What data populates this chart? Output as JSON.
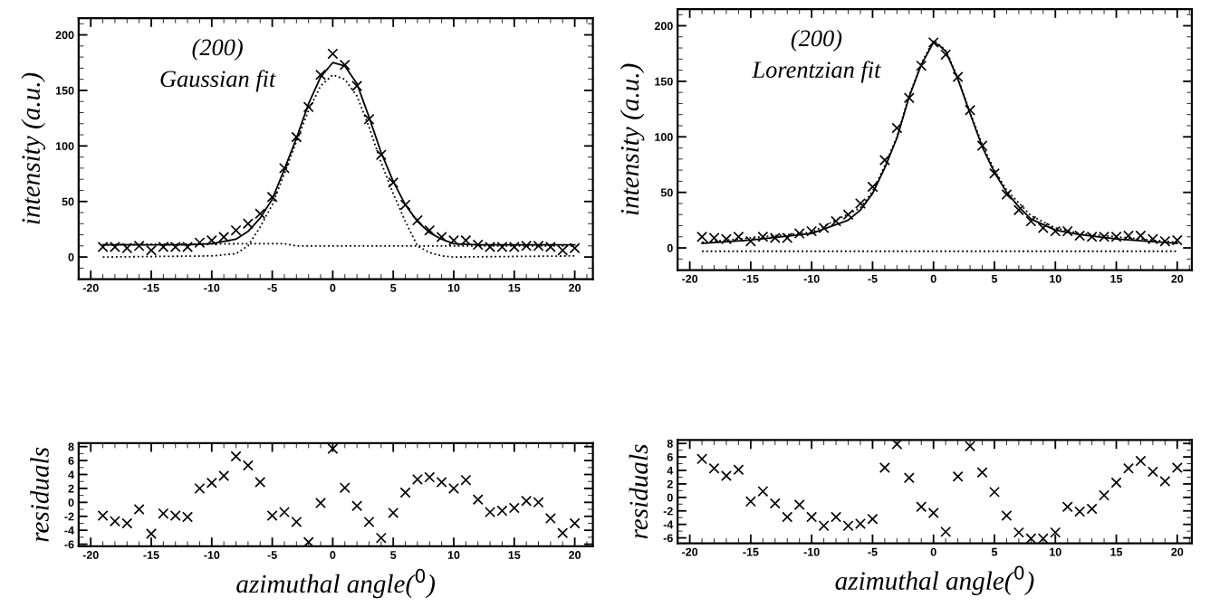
{
  "chart_data": [
    {
      "type": "scatter",
      "ylabel": "intensity (a.u.)",
      "annotations": [
        "(200)",
        "Gaussian fit"
      ],
      "grid": false,
      "x": [
        -19,
        -18,
        -17,
        -16,
        -15,
        -14,
        -13,
        -12,
        -11,
        -10,
        -9,
        -8,
        -7,
        -6,
        -5,
        -4,
        -3,
        -2,
        -1,
        0,
        1,
        2,
        3,
        4,
        5,
        6,
        7,
        8,
        9,
        10,
        11,
        12,
        13,
        14,
        15,
        16,
        17,
        18,
        19,
        20
      ],
      "xlim": [
        -21,
        21.5
      ],
      "ylim": [
        -20,
        215
      ],
      "xticks": [
        -20,
        -15,
        -10,
        -5,
        0,
        5,
        10,
        15,
        20
      ],
      "yticks": [
        0,
        50,
        100,
        150,
        200
      ],
      "series": [
        {
          "marker": "cross",
          "color": "#000000",
          "values": [
            9,
            9,
            8,
            10,
            6,
            9,
            9,
            9,
            13,
            15,
            18,
            24,
            30,
            39,
            54,
            80,
            108,
            135,
            164,
            183,
            173,
            154,
            124,
            92,
            67,
            47,
            33,
            24,
            18,
            15,
            15,
            11,
            9,
            9,
            9,
            10,
            10,
            9,
            6,
            8
          ]
        },
        {
          "type": "line",
          "line_style": "solid",
          "color": "#000000",
          "x": [
            -19,
            -12,
            -10,
            -8,
            -7,
            -6,
            -5,
            -4,
            -3,
            -2,
            -1,
            0,
            1,
            2,
            3,
            4,
            5,
            6,
            7,
            8,
            9,
            10,
            12,
            20
          ],
          "values": [
            11,
            11,
            12,
            16,
            23,
            35,
            52,
            79,
            107,
            138,
            162,
            175,
            172,
            156,
            126,
            94,
            68,
            47,
            32,
            22,
            16,
            12,
            11,
            11
          ]
        },
        {
          "type": "line",
          "line_style": "dotted",
          "color": "#000000",
          "x": [
            -19,
            -10,
            -8,
            -7,
            -6,
            -5,
            -4,
            -3,
            -2,
            -1,
            0,
            1,
            2,
            3,
            4,
            5,
            6,
            7,
            8,
            9,
            10,
            20
          ],
          "values": [
            0,
            1,
            3,
            10,
            27,
            47,
            75,
            104,
            132,
            154,
            164,
            160,
            145,
            117,
            85,
            57,
            32,
            10,
            4,
            1,
            0,
            1
          ]
        },
        {
          "type": "line",
          "line_style": "dotted",
          "color": "#000000",
          "x": [
            -19,
            -7,
            -4,
            -3,
            20
          ],
          "values": [
            11,
            12,
            12,
            10,
            10
          ]
        }
      ]
    },
    {
      "type": "scatter",
      "ylabel": "intensity (a.u.)",
      "annotations": [
        "(200)",
        "Lorentzian fit"
      ],
      "grid": false,
      "x": [
        -19,
        -18,
        -17,
        -16,
        -15,
        -14,
        -13,
        -12,
        -11,
        -10,
        -9,
        -8,
        -7,
        -6,
        -5,
        -4,
        -3,
        -2,
        -1,
        0,
        1,
        2,
        3,
        4,
        5,
        6,
        7,
        8,
        9,
        10,
        11,
        12,
        13,
        14,
        15,
        16,
        17,
        18,
        19,
        20
      ],
      "xlim": [
        -21,
        21.2
      ],
      "ylim": [
        -20,
        215
      ],
      "xticks": [
        -20,
        -15,
        -10,
        -5,
        0,
        5,
        10,
        15,
        20
      ],
      "yticks": [
        0,
        50,
        100,
        150,
        200
      ],
      "series": [
        {
          "marker": "cross",
          "color": "#000000",
          "values": [
            10,
            9,
            8,
            10,
            6,
            10,
            9,
            9,
            13,
            15,
            18,
            24,
            30,
            40,
            55,
            79,
            108,
            135,
            164,
            185,
            174,
            154,
            124,
            92,
            67,
            48,
            34,
            24,
            18,
            15,
            15,
            11,
            10,
            10,
            10,
            11,
            11,
            8,
            6,
            7
          ]
        },
        {
          "type": "line",
          "line_style": "solid",
          "color": "#000000",
          "x": [
            -19,
            -15,
            -10,
            -7,
            -6,
            -5,
            -4,
            -3,
            -2,
            -1,
            0,
            0.5,
            1,
            2,
            3,
            4,
            5,
            6,
            7,
            8,
            10,
            12,
            15,
            20
          ],
          "values": [
            4,
            7,
            13,
            25,
            34,
            49,
            72,
            99,
            136,
            165,
            185,
            182,
            177,
            152,
            121,
            91,
            68,
            50,
            37,
            26,
            16,
            12,
            8,
            4
          ]
        },
        {
          "type": "line",
          "line_style": "dotted",
          "color": "#000000",
          "x": [
            -19,
            -10,
            -6,
            -5,
            -4,
            -3,
            -2,
            -1,
            0,
            1,
            2,
            3,
            4,
            5,
            6,
            8,
            10,
            12,
            15,
            20
          ],
          "values": [
            5,
            14,
            36,
            51,
            74,
            100,
            137,
            166,
            187,
            178,
            153,
            122,
            93,
            70,
            52,
            29,
            18,
            13,
            10,
            5
          ]
        },
        {
          "type": "line",
          "line_style": "dotted",
          "color": "#000000",
          "x": [
            -19,
            20
          ],
          "values": [
            -3,
            -3
          ]
        }
      ]
    },
    {
      "type": "scatter",
      "ylabel": "residuals",
      "xlabel": "azimuthal angle($^{0}$)",
      "grid": false,
      "x": [
        -19,
        -18,
        -17,
        -16,
        -15,
        -14,
        -13,
        -12,
        -11,
        -10,
        -9,
        -8,
        -7,
        -6,
        -5,
        -4,
        -3,
        -2,
        -1,
        0,
        1,
        2,
        3,
        4,
        5,
        6,
        7,
        8,
        9,
        10,
        11,
        12,
        13,
        14,
        15,
        16,
        17,
        18,
        19,
        20
      ],
      "xlim": [
        -21,
        21.5
      ],
      "ylim": [
        -6.3,
        8.5
      ],
      "xticks": [
        -20,
        -15,
        -10,
        -5,
        0,
        5,
        10,
        15,
        20
      ],
      "yticks": [
        -6,
        -4,
        -2,
        0,
        2,
        4,
        6,
        8
      ],
      "series": [
        {
          "marker": "cross",
          "color": "#000000",
          "values": [
            -1.9,
            -2.7,
            -3,
            -1,
            -4.5,
            -1.6,
            -1.9,
            -2.1,
            2,
            2.8,
            3.8,
            6.6,
            5.3,
            2.9,
            -1.9,
            -1.4,
            -2.8,
            -5.7,
            -0.1,
            7.7,
            2.1,
            -0.5,
            -2.8,
            -5.1,
            -1.5,
            1.4,
            3.3,
            3.6,
            2.9,
            2,
            3.2,
            0.4,
            -1.4,
            -1.2,
            -0.8,
            0.2,
            0,
            -2.3,
            -4.4,
            -3
          ]
        }
      ]
    },
    {
      "type": "scatter",
      "ylabel": "residuals",
      "xlabel": "azimuthal angle($^{0}$)",
      "grid": false,
      "x": [
        -19,
        -18,
        -17,
        -16,
        -15,
        -14,
        -13,
        -12,
        -11,
        -10,
        -9,
        -8,
        -7,
        -6,
        -5,
        -4,
        -3,
        -2,
        -1,
        0,
        1,
        2,
        3,
        4,
        5,
        6,
        7,
        8,
        9,
        10,
        11,
        12,
        13,
        14,
        15,
        16,
        17,
        18,
        19,
        20
      ],
      "xlim": [
        -21,
        21.2
      ],
      "ylim": [
        -6.8,
        8.5
      ],
      "xticks": [
        -20,
        -15,
        -10,
        -5,
        0,
        5,
        10,
        15,
        20
      ],
      "yticks": [
        -6,
        -4,
        -2,
        0,
        2,
        4,
        6,
        8
      ],
      "series": [
        {
          "marker": "cross",
          "color": "#000000",
          "values": [
            5.7,
            4.3,
            3.2,
            4.1,
            -0.6,
            0.9,
            -0.9,
            -2.9,
            -1.1,
            -2.9,
            -4.2,
            -2.9,
            -4.2,
            -3.9,
            -3.2,
            4.4,
            7.9,
            2.9,
            -1.4,
            -2.3,
            -5.1,
            3.1,
            7.6,
            3.7,
            0.8,
            -2.7,
            -5.2,
            -6.1,
            -6.1,
            -5.2,
            -1.4,
            -2.1,
            -1.7,
            0.3,
            2.2,
            4.3,
            5.4,
            3.8,
            2.4,
            4.4
          ]
        }
      ]
    }
  ]
}
